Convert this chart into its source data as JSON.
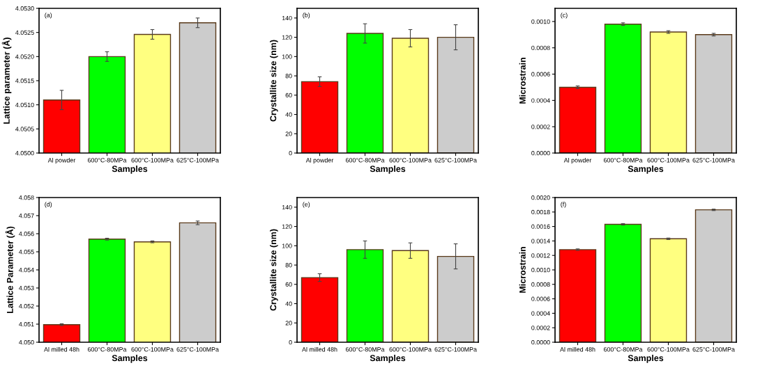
{
  "chart_data": [
    {
      "type": "bar",
      "annotations": [
        "(a)"
      ],
      "xlabel": "Samples",
      "ylabel": "Lattice parameter (Å)",
      "categories": [
        "Al powder",
        "600°C-80MPa",
        "600°C-100MPa",
        "625°C-100MPa"
      ],
      "values": [
        4.0511,
        4.052,
        4.05246,
        4.0527
      ],
      "errors": [
        0.0002,
        0.0001,
        0.0001,
        0.0001
      ],
      "colors": [
        "#ff0000",
        "#00ff00",
        "#ffff80",
        "#cccccc"
      ],
      "ylim": [
        4.05,
        4.053
      ],
      "yticks": [
        {
          "value": 4.05,
          "label": "4.0500"
        },
        {
          "value": 4.0505,
          "label": "4.0505"
        },
        {
          "value": 4.051,
          "label": "4.0510"
        },
        {
          "value": 4.0515,
          "label": "4.0515"
        },
        {
          "value": 4.052,
          "label": "4.0520"
        },
        {
          "value": 4.0525,
          "label": "4.0525"
        },
        {
          "value": 4.053,
          "label": "4.0530"
        }
      ]
    },
    {
      "type": "bar",
      "annotations": [
        "(b)"
      ],
      "xlabel": "Samples",
      "ylabel": "Crystallite size (nm)",
      "categories": [
        "Al powder",
        "600°C-80MPa",
        "600°C-100MPa",
        "625°C-100MPa"
      ],
      "values": [
        74,
        124,
        119,
        120
      ],
      "errors": [
        5,
        10,
        9,
        13
      ],
      "colors": [
        "#ff0000",
        "#00ff00",
        "#ffff80",
        "#cccccc"
      ],
      "ylim": [
        0,
        150
      ],
      "yticks": [
        0,
        20,
        40,
        60,
        80,
        100,
        120,
        140
      ]
    },
    {
      "type": "bar",
      "annotations": [
        "(c)"
      ],
      "xlabel": "Samples",
      "ylabel": "Microstrain",
      "categories": [
        "Al powder",
        "600°C-80MPa",
        "600°C-100MPa",
        "625°C-100MPa"
      ],
      "values": [
        0.0005,
        0.00098,
        0.00092,
        0.0009
      ],
      "errors": [
        1e-05,
        1e-05,
        1e-05,
        1e-05
      ],
      "colors": [
        "#ff0000",
        "#00ff00",
        "#ffff80",
        "#cccccc"
      ],
      "ylim": [
        0,
        0.0011
      ],
      "yticks": [
        {
          "value": 0,
          "label": "0.0000"
        },
        {
          "value": 0.0002,
          "label": "0.0002"
        },
        {
          "value": 0.0004,
          "label": "0.0004"
        },
        {
          "value": 0.0006,
          "label": "0.0006"
        },
        {
          "value": 0.0008,
          "label": "0.0008"
        },
        {
          "value": 0.001,
          "label": "0.0010"
        }
      ]
    },
    {
      "type": "bar",
      "annotations": [
        "(d)"
      ],
      "xlabel": "Samples",
      "ylabel": "Lattice Parameter (Å)",
      "categories": [
        "Al milled 48h",
        "600°C-80MPa",
        "600°C-100MPa",
        "625°C-100MPa"
      ],
      "values": [
        4.05097,
        4.0557,
        4.05555,
        4.0566
      ],
      "errors": [
        5e-05,
        5e-05,
        5e-05,
        0.0001
      ],
      "colors": [
        "#ff0000",
        "#00ff00",
        "#ffff80",
        "#cccccc"
      ],
      "ylim": [
        4.05,
        4.058
      ],
      "yticks": [
        {
          "value": 4.05,
          "label": "4.050"
        },
        {
          "value": 4.051,
          "label": "4.051"
        },
        {
          "value": 4.052,
          "label": "4.052"
        },
        {
          "value": 4.053,
          "label": "4.053"
        },
        {
          "value": 4.054,
          "label": "4.054"
        },
        {
          "value": 4.055,
          "label": "4.055"
        },
        {
          "value": 4.056,
          "label": "4.056"
        },
        {
          "value": 4.057,
          "label": "4.057"
        },
        {
          "value": 4.058,
          "label": "4.058"
        }
      ]
    },
    {
      "type": "bar",
      "annotations": [
        "(e)"
      ],
      "xlabel": "Samples",
      "ylabel": "Crystallite size (nm)",
      "categories": [
        "Al milled 48h",
        "600°C-80MPa",
        "600°C-100MPa",
        "625°C-100MPa"
      ],
      "values": [
        67,
        96,
        95,
        89
      ],
      "errors": [
        4,
        9,
        8,
        13
      ],
      "colors": [
        "#ff0000",
        "#00ff00",
        "#ffff80",
        "#cccccc"
      ],
      "ylim": [
        0,
        150
      ],
      "yticks": [
        0,
        20,
        40,
        60,
        80,
        100,
        120,
        140
      ]
    },
    {
      "type": "bar",
      "annotations": [
        "(f)"
      ],
      "xlabel": "Samples",
      "ylabel": "Microstrain",
      "categories": [
        "Al milled 48h",
        "600°C-80MPa",
        "600°C-100MPa",
        "625°C-100MPa"
      ],
      "values": [
        0.00128,
        0.00163,
        0.00143,
        0.00183
      ],
      "errors": [
        1e-05,
        1e-05,
        1e-05,
        1e-05
      ],
      "colors": [
        "#ff0000",
        "#00ff00",
        "#ffff80",
        "#cccccc"
      ],
      "ylim": [
        0,
        0.002
      ],
      "yticks": [
        {
          "value": 0,
          "label": "0.0000"
        },
        {
          "value": 0.0002,
          "label": "0.0002"
        },
        {
          "value": 0.0004,
          "label": "0.0004"
        },
        {
          "value": 0.0006,
          "label": "0.0006"
        },
        {
          "value": 0.0008,
          "label": "0.0008"
        },
        {
          "value": 0.001,
          "label": "0.0010"
        },
        {
          "value": 0.0012,
          "label": "0.0012"
        },
        {
          "value": 0.0014,
          "label": "0.0014"
        },
        {
          "value": 0.0016,
          "label": "0.0016"
        },
        {
          "value": 0.0018,
          "label": "0.0018"
        },
        {
          "value": 0.002,
          "label": "0.0020"
        }
      ]
    }
  ]
}
